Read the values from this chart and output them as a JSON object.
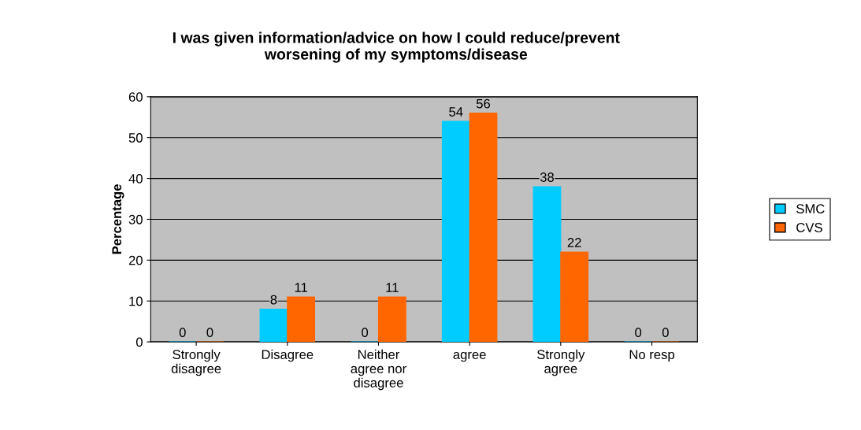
{
  "chart_data": {
    "type": "bar",
    "title": "I was given information/advice on how I could reduce/prevent worsening of my symptoms/disease",
    "ylabel": "Percentage",
    "categories": [
      "Strongly disagree",
      "Disagree",
      "Neither agree nor disagree",
      "agree",
      "Strongly agree",
      "No resp"
    ],
    "series": [
      {
        "name": "SMC",
        "color": "#00ccff",
        "values": [
          0,
          8,
          0,
          54,
          38,
          0
        ]
      },
      {
        "name": "CVS",
        "color": "#ff6600",
        "values": [
          0,
          11,
          11,
          56,
          22,
          0
        ]
      }
    ],
    "ylim": [
      0,
      60
    ],
    "yticks": [
      0,
      10,
      20,
      30,
      40,
      50,
      60
    ],
    "grid": "y",
    "legend": "right",
    "data_labels": true
  }
}
